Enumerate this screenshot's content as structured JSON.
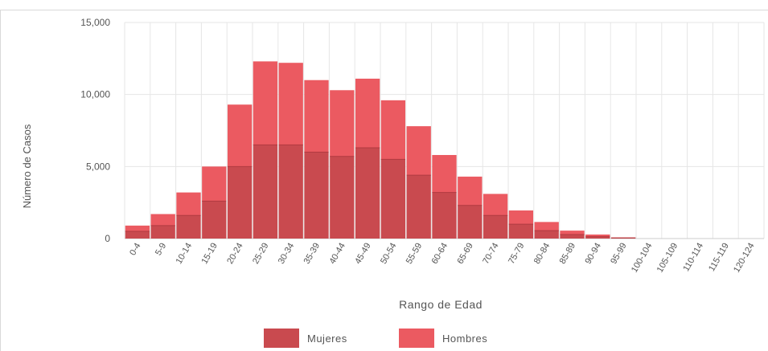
{
  "colors": {
    "mujeres": "#c94a4f",
    "hombres": "#eb5a61",
    "grid": "#e6e6e6",
    "axis_text": "#555555"
  },
  "chart_data": {
    "type": "bar",
    "stacked": true,
    "title": "",
    "xlabel": "Rango de Edad",
    "ylabel": "Número de Casos",
    "ylim": [
      0,
      15000
    ],
    "yticks": [
      0,
      5000,
      10000,
      15000
    ],
    "ytick_labels": [
      "0",
      "5,000",
      "10,000",
      "15,000"
    ],
    "grid": true,
    "legend_position": "bottom",
    "categories": [
      "0-4",
      "5-9",
      "10-14",
      "15-19",
      "20-24",
      "25-29",
      "30-34",
      "35-39",
      "40-44",
      "45-49",
      "50-54",
      "55-59",
      "60-64",
      "65-69",
      "70-74",
      "75-79",
      "80-84",
      "85-89",
      "90-94",
      "95-99",
      "100-104",
      "105-109",
      "110-114",
      "115-119",
      "120-124"
    ],
    "series": [
      {
        "name": "Mujeres",
        "color": "#c94a4f",
        "values": [
          500,
          900,
          1600,
          2600,
          5000,
          6500,
          6500,
          6000,
          5700,
          6300,
          5500,
          4400,
          3200,
          2300,
          1600,
          1000,
          550,
          280,
          130,
          40,
          0,
          0,
          0,
          0,
          0
        ]
      },
      {
        "name": "Hombres",
        "color": "#eb5a61",
        "values": [
          400,
          800,
          1600,
          2400,
          4300,
          5800,
          5700,
          5000,
          4600,
          4800,
          4100,
          3400,
          2600,
          2000,
          1500,
          950,
          600,
          270,
          150,
          40,
          0,
          0,
          0,
          0,
          0
        ]
      }
    ]
  }
}
